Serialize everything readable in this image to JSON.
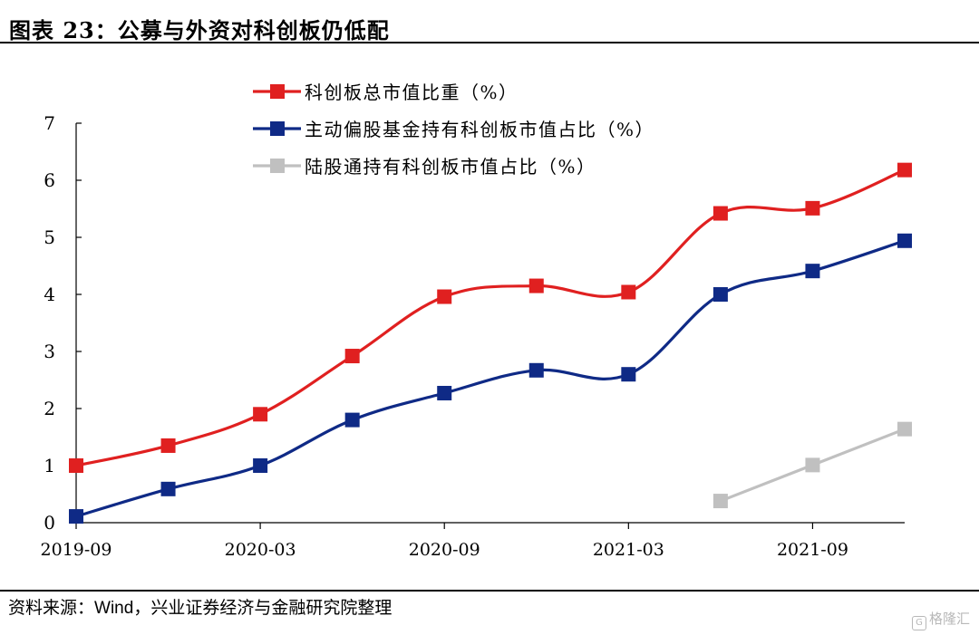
{
  "title": "图表 23：公募与外资对科创板仍低配",
  "source": {
    "prefix": "资料来源：",
    "wind": "Wind",
    "suffix": "，兴业证券经济与金融研究院整理"
  },
  "watermark": {
    "icon": "G",
    "text": "格隆汇"
  },
  "chart_data": {
    "type": "line",
    "x": [
      "2019-09",
      "2019-12",
      "2020-03",
      "2020-06",
      "2020-09",
      "2020-12",
      "2021-03",
      "2021-06",
      "2021-09",
      "2021-12"
    ],
    "x_tick_labels": [
      "2019-09",
      "2020-03",
      "2020-09",
      "2021-03",
      "2021-09"
    ],
    "ylim": [
      0,
      7
    ],
    "y_ticks": [
      "0",
      "1",
      "2",
      "3",
      "4",
      "5",
      "6",
      "7"
    ],
    "grid": false,
    "legend_position": "top-left",
    "series": [
      {
        "name": "科创板总市值比重（%）",
        "color": "#e02020",
        "values": [
          1.0,
          1.35,
          1.9,
          2.92,
          3.96,
          4.15,
          4.04,
          5.42,
          5.51,
          6.18
        ]
      },
      {
        "name": "主动偏股基金持有科创板市值占比（%）",
        "color": "#0f2a86",
        "values": [
          0.11,
          0.59,
          1.0,
          1.8,
          2.27,
          2.67,
          2.6,
          4.0,
          4.41,
          4.94
        ]
      },
      {
        "name": "陆股通持有科创板市值占比（%）",
        "color": "#c0c0c0",
        "values": [
          null,
          null,
          null,
          null,
          null,
          null,
          null,
          0.38,
          1.01,
          1.64
        ]
      }
    ]
  }
}
